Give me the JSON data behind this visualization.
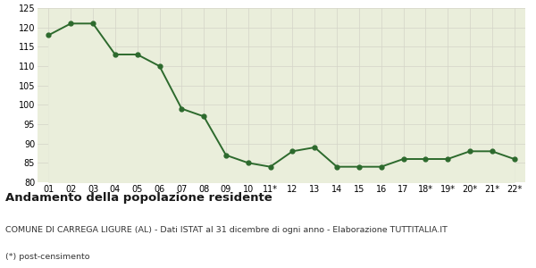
{
  "x_labels": [
    "01",
    "02",
    "03",
    "04",
    "05",
    "06",
    "07",
    "08",
    "09",
    "10",
    "11*",
    "12",
    "13",
    "14",
    "15",
    "16",
    "17",
    "18*",
    "19*",
    "20*",
    "21*",
    "22*"
  ],
  "y_values": [
    118,
    121,
    121,
    113,
    113,
    110,
    99,
    97,
    87,
    85,
    84,
    88,
    89,
    84,
    84,
    84,
    86,
    86,
    86,
    88,
    88,
    86
  ],
  "ylim": [
    80,
    125
  ],
  "yticks": [
    80,
    85,
    90,
    95,
    100,
    105,
    110,
    115,
    120,
    125
  ],
  "line_color": "#2d6a2d",
  "fill_color": "#eaeedb",
  "marker": "o",
  "marker_size": 3.5,
  "line_width": 1.4,
  "bg_color": "#ffffff",
  "plot_bg_color": "#eaeedb",
  "grid_color": "#d4d4c8",
  "title": "Andamento della popolazione residente",
  "subtitle": "COMUNE DI CARREGA LIGURE (AL) - Dati ISTAT al 31 dicembre di ogni anno - Elaborazione TUTTITALIA.IT",
  "footnote": "(*) post-censimento",
  "title_fontsize": 9.5,
  "subtitle_fontsize": 6.8,
  "footnote_fontsize": 6.8,
  "tick_fontsize": 7
}
